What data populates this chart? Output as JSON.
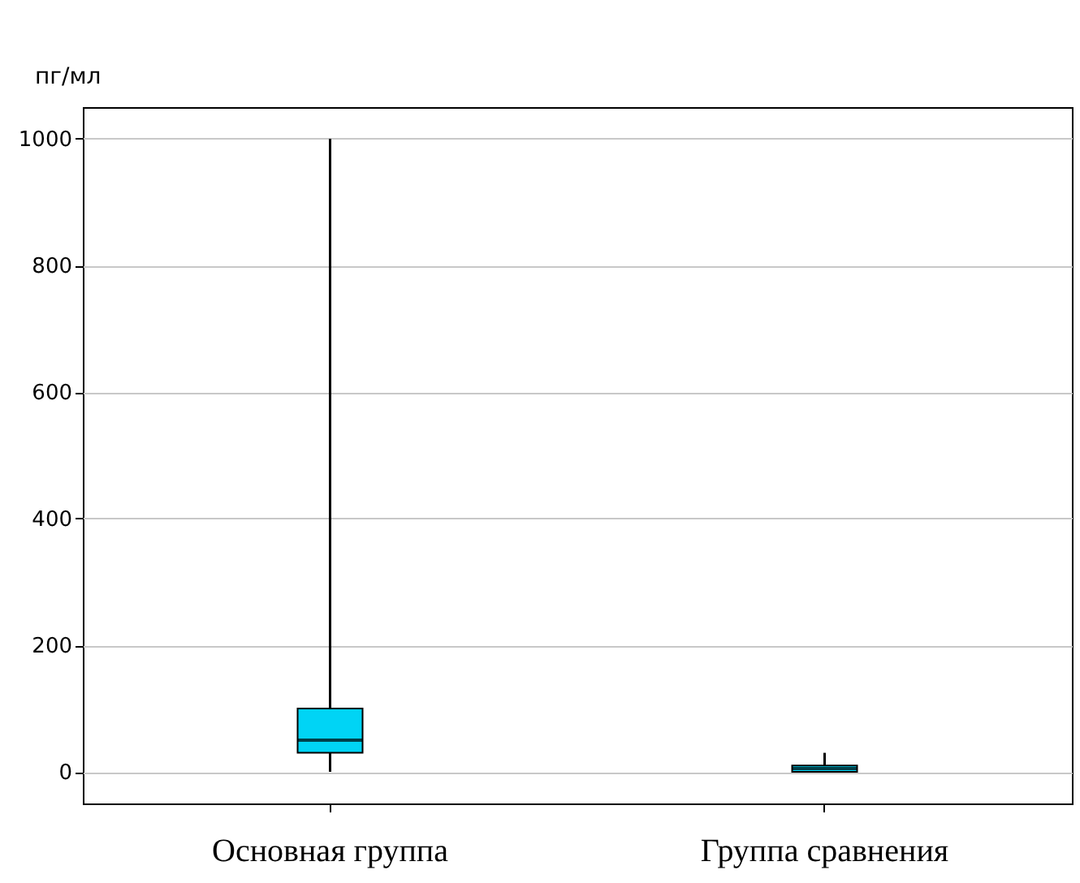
{
  "chart_data": {
    "type": "box",
    "ylabel": "пг/мл",
    "categories": [
      "Основная группа",
      "Группа сравнения"
    ],
    "series": [
      {
        "color": "#00d4f5",
        "boxes": [
          {
            "low": 0,
            "q1": 30,
            "median": 50,
            "q3": 100,
            "high": 1000
          },
          {
            "low": 0,
            "q1": 0,
            "median": 5,
            "q3": 10,
            "high": 30
          }
        ]
      }
    ],
    "ylim": [
      -50,
      1050
    ],
    "yticks": [
      0,
      200,
      400,
      600,
      800,
      1000
    ],
    "grid": "y"
  }
}
